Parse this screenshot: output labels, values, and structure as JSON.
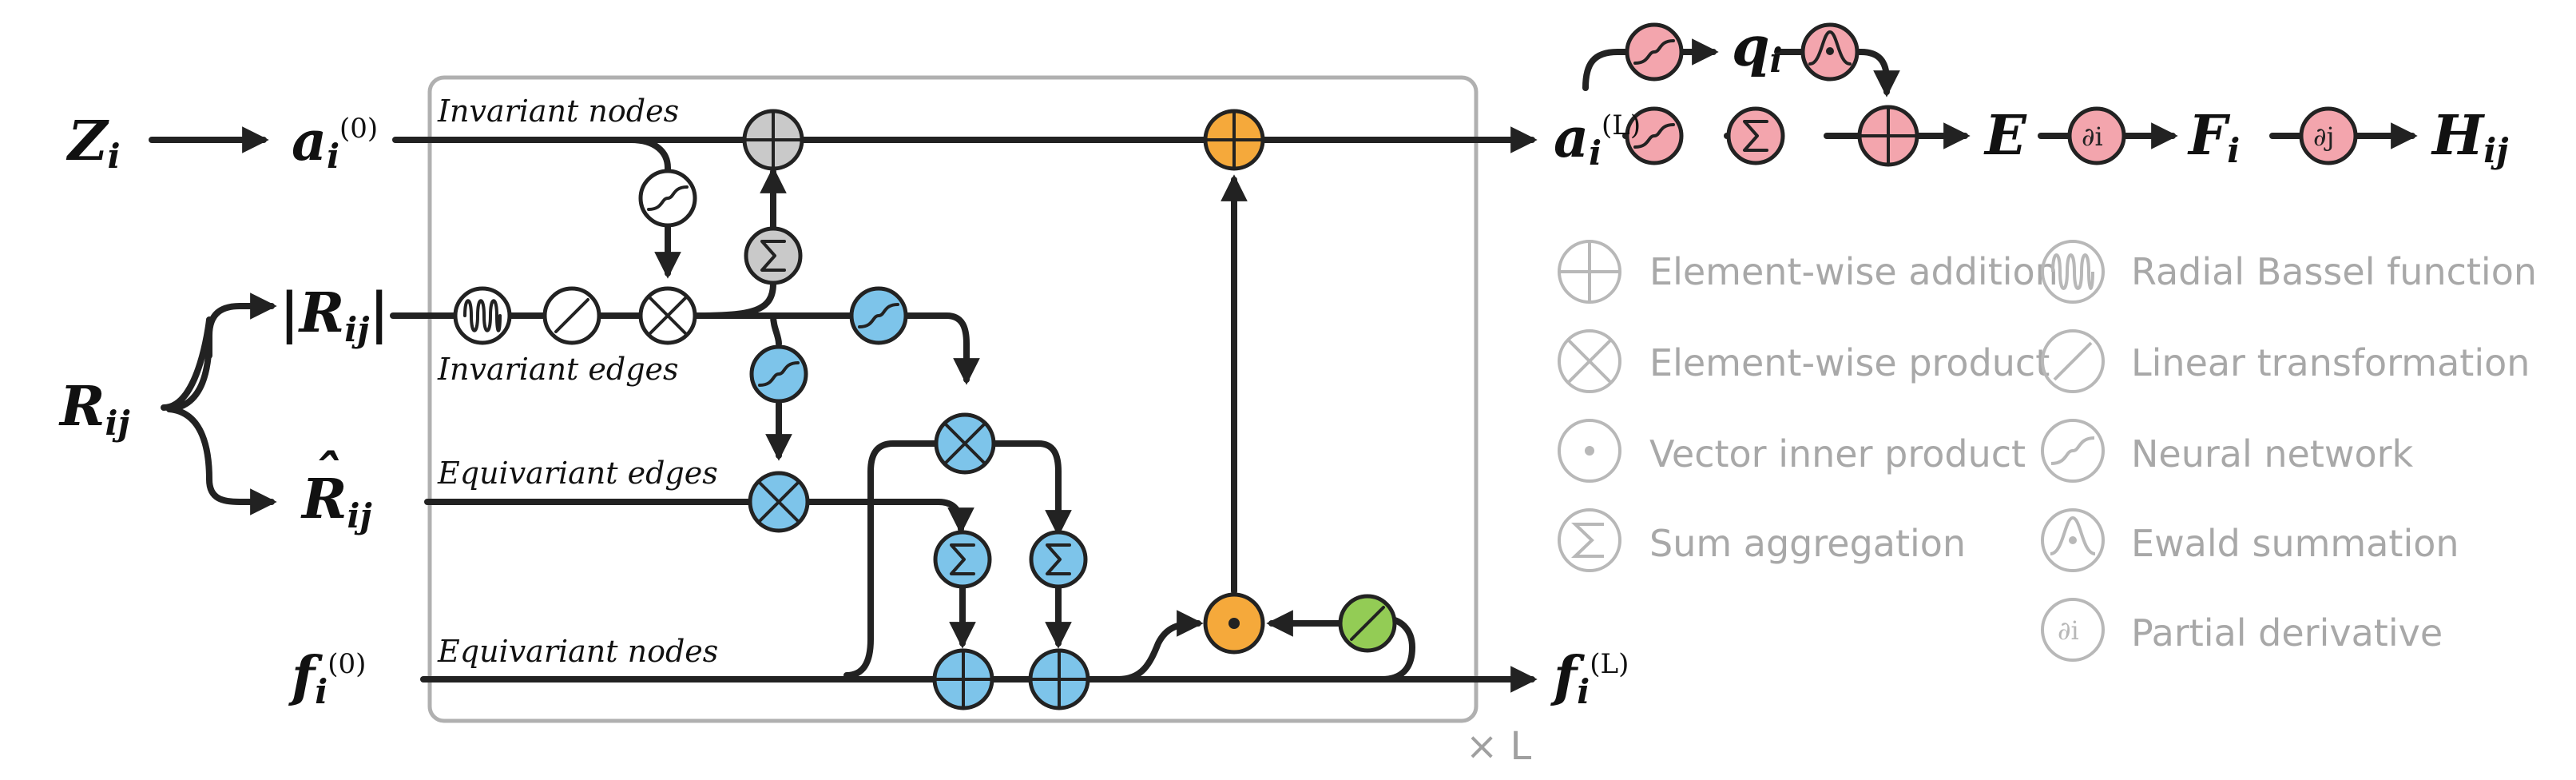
{
  "colors": {
    "invariant": "#c9c9c9",
    "equivariant": "#7dc4ea",
    "update": "#f5a93b",
    "output": "#f3a5ad",
    "linear": "#93cc55",
    "legend": "#a8a8a8",
    "ink": "#222222"
  },
  "inputs": {
    "z": {
      "main": "Z",
      "sub": "i"
    },
    "r": {
      "main": "R",
      "sub": "ij"
    },
    "r_norm": {
      "main": "R",
      "sub": "ij",
      "bar_left": "|",
      "bar_right": "|"
    },
    "r_hat": {
      "main": "R",
      "hat": "ˆ",
      "sub": "ij"
    },
    "a0": {
      "main": "a",
      "sub": "i",
      "sup": "(0)"
    },
    "f0": {
      "main": "f",
      "sub": "i",
      "sup": "(0)"
    }
  },
  "outputs": {
    "aL": {
      "main": "a",
      "sub": "i",
      "sup": "(L)"
    },
    "fL": {
      "main": "f",
      "sub": "i",
      "sup": "(L)"
    },
    "q": {
      "main": "q",
      "sub": "i"
    },
    "e": {
      "main": "E"
    },
    "f": {
      "main": "F",
      "sub": "i"
    },
    "h": {
      "main": "H",
      "sub": "ij"
    }
  },
  "stream_labels": {
    "invariant_nodes": "Invariant nodes",
    "invariant_edges": "Invariant edges",
    "equivariant_edges": "Equivariant edges",
    "equivariant_nodes": "Equivariant nodes"
  },
  "repeat_label": "× L",
  "partial_i": "∂i",
  "partial_j": "∂j",
  "legend": [
    {
      "icon": "plus-circle-icon",
      "label": "Element-wise addition"
    },
    {
      "icon": "times-circle-icon",
      "label": "Element-wise product"
    },
    {
      "icon": "dot-circle-icon",
      "label": "Vector inner product"
    },
    {
      "icon": "sigma-circle-icon",
      "label": "Sum aggregation"
    },
    {
      "icon": "wave-circle-icon",
      "label": "Radial Bassel function"
    },
    {
      "icon": "slash-circle-icon",
      "label": "Linear transformation"
    },
    {
      "icon": "sigmoid-circle-icon",
      "label": "Neural network"
    },
    {
      "icon": "bump-circle-icon",
      "label": "Ewald summation"
    },
    {
      "icon": "partial-circle-icon",
      "label": "Partial derivative"
    }
  ]
}
